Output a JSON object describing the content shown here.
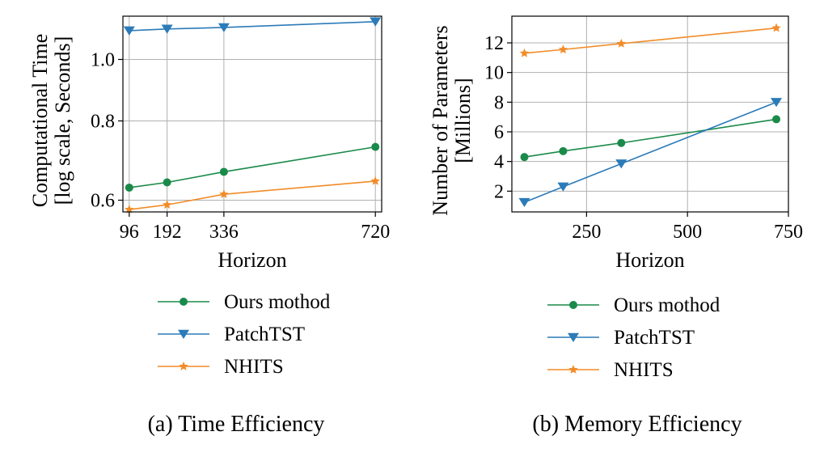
{
  "colors": {
    "ours": "#1a8a4a",
    "patchtst": "#2b7bb9",
    "nhits": "#f28c28",
    "grid": "#b0b0b0",
    "axis": "#000000"
  },
  "chart_data": [
    {
      "type": "line",
      "caption": "(a) Time Efficiency",
      "xlabel": "Horizon",
      "ylabel": [
        "Computational Time",
        "[log scale, Seconds]"
      ],
      "yscale": "log",
      "ylim": [
        0.575,
        1.17
      ],
      "xlim": [
        80,
        736
      ],
      "x": [
        96,
        192,
        336,
        720
      ],
      "xticks": [
        96,
        192,
        336,
        720
      ],
      "xtick_labels": [
        "96",
        "192",
        "336",
        "720"
      ],
      "yticks": [
        0.6,
        0.8,
        1.0
      ],
      "ytick_labels": [
        "0.6",
        "0.8",
        "1.0"
      ],
      "grid": true,
      "series": [
        {
          "name": "Ours mothod",
          "marker": "circle",
          "values": [
            0.628,
            0.64,
            0.665,
            0.728
          ]
        },
        {
          "name": "PatchTST",
          "marker": "triangle-down",
          "values": [
            1.11,
            1.117,
            1.123,
            1.147
          ]
        },
        {
          "name": "NHITS",
          "marker": "star",
          "values": [
            0.58,
            0.59,
            0.613,
            0.643
          ]
        }
      ]
    },
    {
      "type": "line",
      "caption": "(b) Memory Efficiency",
      "xlabel": "Horizon",
      "ylabel": [
        "Number of Parameters",
        "[Millions]"
      ],
      "yscale": "linear",
      "ylim": [
        0.6,
        13.8
      ],
      "xlim": [
        65,
        750
      ],
      "x": [
        96,
        192,
        336,
        720
      ],
      "xticks": [
        250,
        500,
        750
      ],
      "xtick_labels": [
        "250",
        "500",
        "750"
      ],
      "yticks": [
        2,
        4,
        6,
        8,
        10,
        12
      ],
      "ytick_labels": [
        "2",
        "4",
        "6",
        "8",
        "10",
        "12"
      ],
      "grid": true,
      "series": [
        {
          "name": "Ours mothod",
          "marker": "circle",
          "values": [
            4.3,
            4.7,
            5.25,
            6.85
          ]
        },
        {
          "name": "PatchTST",
          "marker": "triangle-down",
          "values": [
            1.25,
            2.3,
            3.85,
            8.0
          ]
        },
        {
          "name": "NHITS",
          "marker": "star",
          "values": [
            11.3,
            11.55,
            11.95,
            13.0
          ]
        }
      ]
    }
  ]
}
